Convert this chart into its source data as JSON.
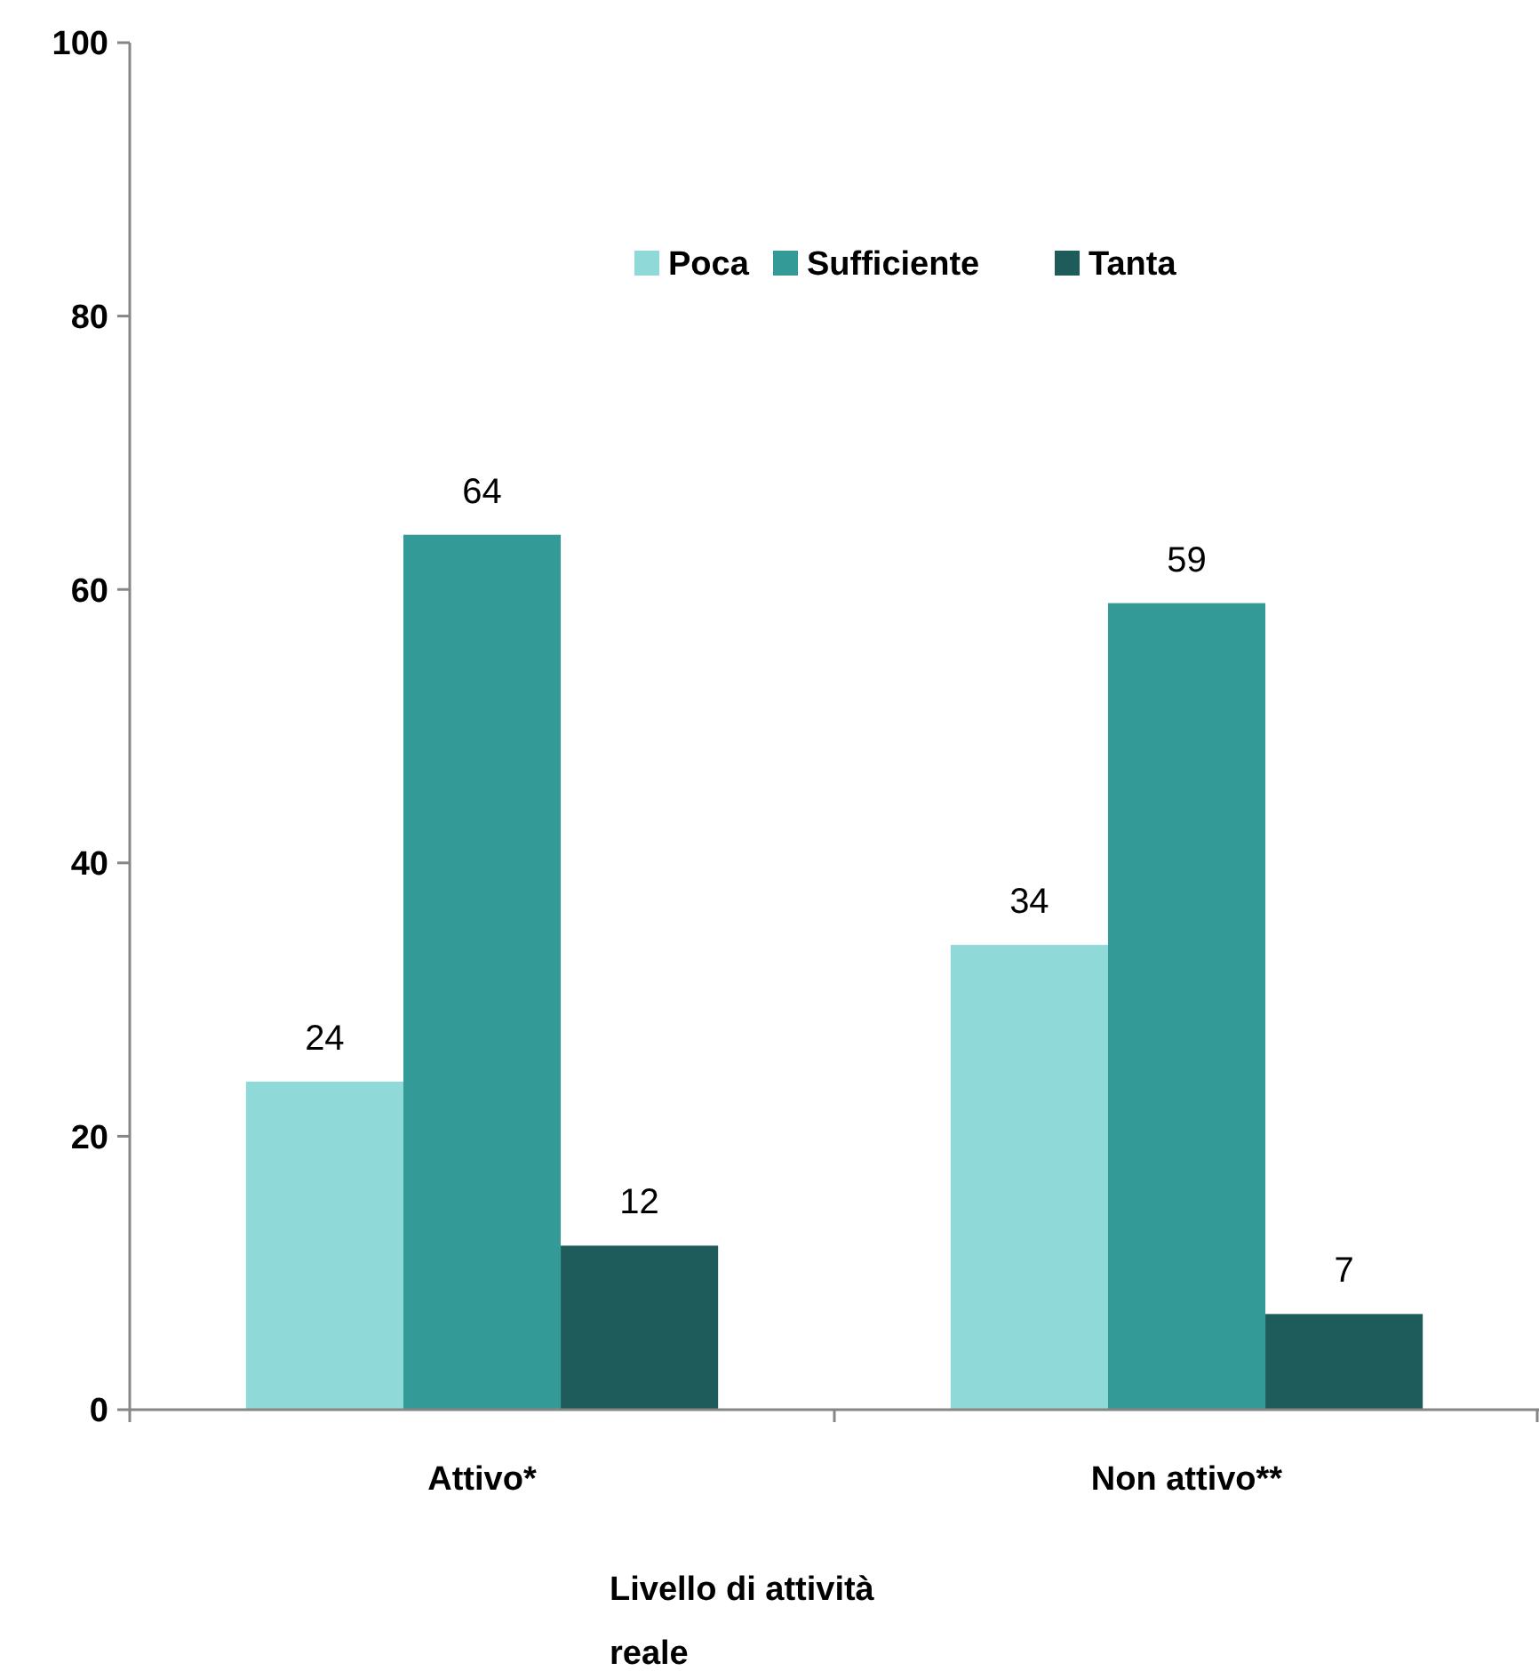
{
  "chart_data": {
    "type": "bar",
    "xlabel": "Livello di attività reale",
    "categories": [
      "Attivo*",
      "Non attivo**"
    ],
    "series": [
      {
        "name": "Poca",
        "color": "#8fdad8",
        "values": [
          24,
          34
        ]
      },
      {
        "name": "Sufficiente",
        "color": "#339a98",
        "values": [
          64,
          59
        ]
      },
      {
        "name": "Tanta",
        "color": "#1e5c5c",
        "values": [
          12,
          7
        ]
      }
    ],
    "ylim": [
      0,
      100
    ],
    "yticks": [
      0,
      20,
      40,
      60,
      80,
      100
    ],
    "grid": false,
    "legend": "top",
    "data_labels": true
  }
}
